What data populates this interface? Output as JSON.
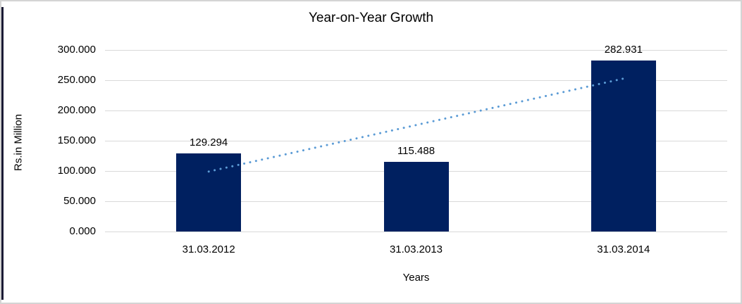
{
  "chart_data": {
    "type": "bar",
    "title": "Year-on-Year Growth",
    "xlabel": "Years",
    "ylabel": "Rs.in Million",
    "categories": [
      "31.03.2012",
      "31.03.2013",
      "31.03.2014"
    ],
    "values": [
      129.294,
      115.488,
      282.931
    ],
    "value_labels": [
      "129.294",
      "115.488",
      "282.931"
    ],
    "ylim": [
      0,
      300
    ],
    "ytick_step": 50,
    "yticks": [
      {
        "value": 0,
        "label": "0.000"
      },
      {
        "value": 50,
        "label": "50.000"
      },
      {
        "value": 100,
        "label": "100.000"
      },
      {
        "value": 150,
        "label": "150.000"
      },
      {
        "value": 200,
        "label": "200.000"
      },
      {
        "value": 250,
        "label": "250.000"
      },
      {
        "value": 300,
        "label": "300.000"
      }
    ],
    "grid": true,
    "legend": "none",
    "bar_color": "#002060",
    "gridline_color": "#d9d9d9",
    "trendline": {
      "type": "linear",
      "style": "dotted",
      "color": "#5B9BD5",
      "start_value": 99.09,
      "end_value": 252.72
    }
  }
}
